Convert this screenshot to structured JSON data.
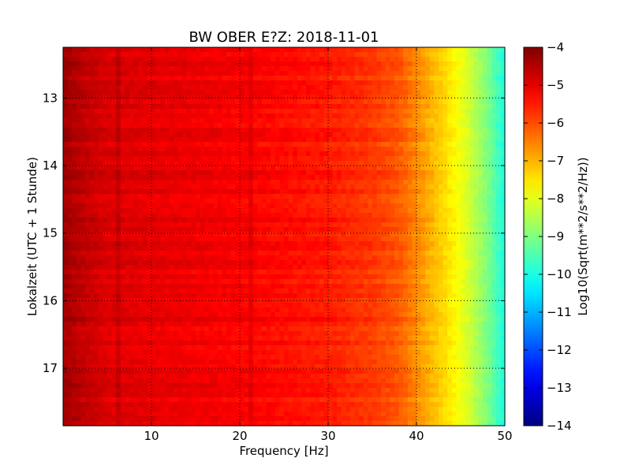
{
  "chart_data": {
    "type": "heatmap",
    "title": "BW OBER E?Z: 2018-11-01",
    "xlabel": "Frequency [Hz]",
    "ylabel": "Lokalzeit (UTC + 1 Stunde)",
    "xlim": [
      0,
      50
    ],
    "ylim": [
      12.25,
      17.85
    ],
    "y_inverted": true,
    "x_ticks": [
      {
        "value": 10,
        "label": "10"
      },
      {
        "value": 20,
        "label": "20"
      },
      {
        "value": 30,
        "label": "30"
      },
      {
        "value": 40,
        "label": "40"
      },
      {
        "value": 50,
        "label": "50"
      }
    ],
    "y_ticks": [
      {
        "value": 13,
        "label": "13"
      },
      {
        "value": 14,
        "label": "14"
      },
      {
        "value": 15,
        "label": "15"
      },
      {
        "value": 16,
        "label": "16"
      },
      {
        "value": 17,
        "label": "17"
      }
    ],
    "grid": true,
    "colormap": "jet",
    "colorbar": {
      "label": "Log10(Sqrt(m**2/s**2/Hz))",
      "range": [
        -14,
        -4
      ],
      "ticks": [
        {
          "value": -4,
          "label": "−4"
        },
        {
          "value": -5,
          "label": "−5"
        },
        {
          "value": -6,
          "label": "−6"
        },
        {
          "value": -7,
          "label": "−7"
        },
        {
          "value": -8,
          "label": "−8"
        },
        {
          "value": -9,
          "label": "−9"
        },
        {
          "value": -10,
          "label": "−10"
        },
        {
          "value": -11,
          "label": "−11"
        },
        {
          "value": -12,
          "label": "−12"
        },
        {
          "value": -13,
          "label": "−13"
        },
        {
          "value": -14,
          "label": "−14"
        }
      ]
    },
    "spectrum_profile": {
      "frequency_hz": [
        0,
        2,
        5,
        10,
        20,
        30,
        35,
        38,
        40,
        42,
        44,
        46,
        48,
        50
      ],
      "log_amplitude": [
        -4.3,
        -4.6,
        -4.9,
        -5.0,
        -5.2,
        -5.5,
        -5.8,
        -6.1,
        -6.6,
        -7.1,
        -7.6,
        -8.2,
        -9.0,
        -10.0
      ]
    }
  }
}
